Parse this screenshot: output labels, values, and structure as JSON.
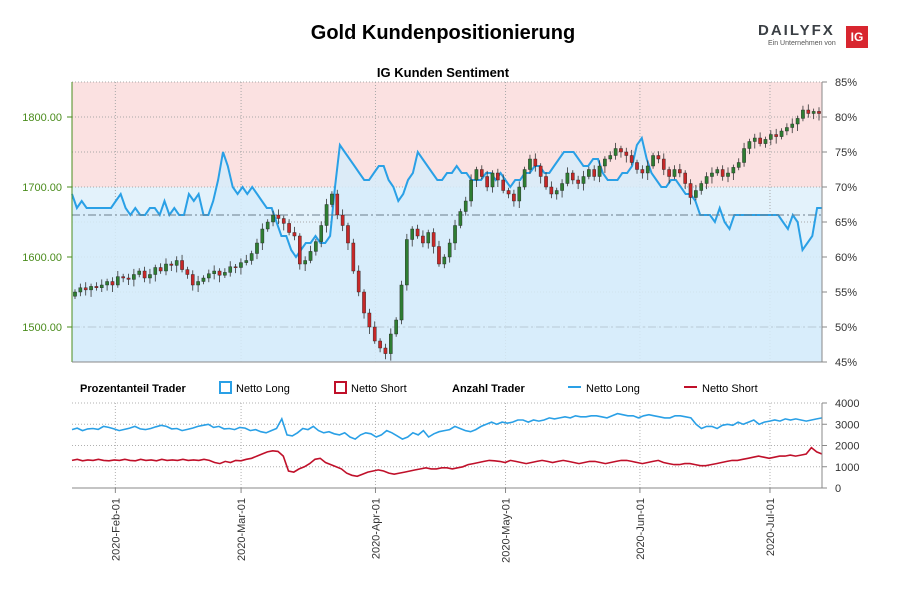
{
  "header": {
    "title": "Gold Kundenpositionierung",
    "logo_brand": "DAILYFX",
    "logo_tagline": "Ein Unternehmen von",
    "logo_ig": "IG"
  },
  "colors": {
    "bull": "#2e7d32",
    "bear": "#c62828",
    "long_line": "#2aa0e6",
    "short_line": "#c0102a",
    "long_fill": "#e3f2fb",
    "short_fill": "#fbe1e1",
    "price_axis": "#4a8c1c"
  },
  "chart_data": {
    "type": "candlestick+line",
    "title": "IG Kunden Sentiment",
    "dates": {
      "start": "2020-01-22",
      "end": "2020-07-13",
      "ticks": [
        "2020-Feb-01",
        "2020-Mar-01",
        "2020-Apr-01",
        "2020-May-01",
        "2020-Jun-01",
        "2020-Jul-01"
      ]
    },
    "price_axis": {
      "range": [
        1450,
        1850
      ],
      "ticks": [
        "1500.00",
        "1600.00",
        "1700.00",
        "1800.00"
      ]
    },
    "sentiment_axis": {
      "range": [
        45,
        85
      ],
      "ticks": [
        "45%",
        "50%",
        "55%",
        "60%",
        "65%",
        "70%",
        "75%",
        "80%",
        "85%"
      ]
    },
    "count_axis": {
      "range": [
        0,
        4000
      ],
      "ticks": [
        "0",
        "1000",
        "2000",
        "3000",
        "4000"
      ]
    },
    "legend": {
      "pct_title": "Prozentanteil Trader",
      "pct_long": "Netto Long",
      "pct_short": "Netto Short",
      "count_title": "Anzahl Trader",
      "count_long": "Netto Long",
      "count_short": "Netto Short"
    },
    "price_closes": [
      1550,
      1556,
      1553,
      1558,
      1556,
      1560,
      1565,
      1560,
      1572,
      1570,
      1568,
      1575,
      1580,
      1570,
      1575,
      1585,
      1580,
      1590,
      1588,
      1595,
      1582,
      1575,
      1560,
      1565,
      1570,
      1576,
      1580,
      1574,
      1578,
      1586,
      1585,
      1592,
      1595,
      1605,
      1620,
      1640,
      1650,
      1660,
      1655,
      1648,
      1635,
      1630,
      1590,
      1595,
      1608,
      1622,
      1645,
      1675,
      1690,
      1660,
      1645,
      1620,
      1580,
      1550,
      1520,
      1500,
      1480,
      1470,
      1462,
      1490,
      1510,
      1560,
      1625,
      1640,
      1630,
      1620,
      1635,
      1615,
      1590,
      1600,
      1620,
      1645,
      1665,
      1680,
      1710,
      1725,
      1715,
      1700,
      1720,
      1710,
      1695,
      1690,
      1680,
      1700,
      1725,
      1740,
      1730,
      1715,
      1700,
      1690,
      1695,
      1705,
      1720,
      1710,
      1705,
      1715,
      1725,
      1715,
      1730,
      1740,
      1745,
      1755,
      1750,
      1745,
      1735,
      1725,
      1720,
      1730,
      1745,
      1740,
      1725,
      1715,
      1725,
      1720,
      1705,
      1685,
      1695,
      1705,
      1715,
      1720,
      1725,
      1715,
      1720,
      1728,
      1735,
      1755,
      1765,
      1770,
      1762,
      1768,
      1775,
      1772,
      1780,
      1785,
      1790,
      1798,
      1810,
      1805,
      1808,
      1805
    ],
    "sentiment_long_pct": [
      69,
      67,
      68,
      67,
      67,
      67,
      67,
      67,
      67,
      68,
      69,
      67,
      66,
      67,
      66,
      66,
      67,
      67,
      66,
      68,
      66,
      67,
      66,
      66,
      69,
      68,
      69,
      66,
      66,
      68,
      71,
      75,
      73,
      70,
      69,
      70,
      69,
      70,
      69,
      68,
      67,
      67,
      65,
      63,
      63,
      61,
      60,
      61,
      62,
      62,
      63,
      62,
      62,
      63,
      70,
      76,
      75,
      74,
      73,
      72,
      71,
      71,
      72,
      73,
      73,
      71,
      70,
      68,
      69,
      71,
      72,
      75,
      74,
      73,
      72,
      71,
      71,
      72,
      72,
      73,
      72,
      72,
      71,
      71,
      71,
      72,
      72,
      71,
      72,
      71,
      70,
      71,
      71,
      72,
      72,
      73,
      73,
      72,
      72,
      73,
      74,
      75,
      75,
      75,
      74,
      73,
      73,
      74,
      74,
      72,
      71,
      71,
      71,
      72,
      72,
      73,
      76,
      77,
      74,
      72,
      71,
      70,
      70,
      71,
      71,
      70,
      69,
      69,
      68,
      66,
      66,
      66,
      65,
      67,
      65,
      64,
      66,
      66,
      66,
      66,
      66,
      66,
      66,
      66,
      66,
      66,
      65,
      64,
      66,
      65,
      61,
      62,
      63,
      67,
      67
    ],
    "count_long": [
      2750,
      2820,
      2700,
      2780,
      2800,
      2760,
      2900,
      2850,
      2780,
      2700,
      2760,
      2820,
      2900,
      2780,
      2750,
      2800,
      2880,
      2950,
      2900,
      2780,
      2800,
      2700,
      2760,
      2820,
      2900,
      2950,
      3000,
      2850,
      2900,
      2780,
      2800,
      2750,
      2850,
      2820,
      2700,
      2750,
      2650,
      2600,
      2700,
      2800,
      3250,
      2500,
      2450,
      2600,
      2800,
      2750,
      2900,
      2700,
      2600,
      2650,
      2550,
      2500,
      2600,
      2400,
      2300,
      2500,
      2600,
      2550,
      2400,
      2500,
      2700,
      2600,
      2450,
      2300,
      2400,
      2600,
      2500,
      2700,
      2400,
      2550,
      2650,
      2700,
      2750,
      2900,
      2800,
      2700,
      2650,
      2750,
      2900,
      3000,
      3100,
      3000,
      3100,
      3050,
      3100,
      3200,
      3200,
      3100,
      3200,
      3150,
      3200,
      3300,
      3250,
      3300,
      3350,
      3300,
      3400,
      3350,
      3350,
      3400,
      3400,
      3350,
      3300,
      3400,
      3500,
      3450,
      3400,
      3400,
      3300,
      3400,
      3450,
      3400,
      3350,
      3300,
      3300,
      3400,
      3400,
      3350,
      3300,
      3000,
      2800,
      2900,
      2900,
      2800,
      2950,
      3000,
      2950,
      3100,
      3000,
      3100,
      3200,
      3000,
      3100,
      3150,
      3200,
      3150,
      3250,
      3200,
      3250,
      3200,
      3150,
      3200,
      3250,
      3300
    ],
    "count_short": [
      1300,
      1350,
      1280,
      1320,
      1300,
      1350,
      1300,
      1280,
      1320,
      1300,
      1350,
      1300,
      1280,
      1350,
      1300,
      1320,
      1280,
      1350,
      1300,
      1320,
      1300,
      1350,
      1300,
      1320,
      1300,
      1350,
      1300,
      1200,
      1150,
      1250,
      1200,
      1300,
      1280,
      1350,
      1400,
      1500,
      1600,
      1700,
      1750,
      1720,
      1500,
      800,
      750,
      900,
      1000,
      1150,
      1350,
      1400,
      1200,
      1100,
      1000,
      900,
      700,
      600,
      550,
      650,
      750,
      800,
      850,
      800,
      700,
      650,
      700,
      750,
      800,
      850,
      900,
      950,
      900,
      900,
      950,
      950,
      900,
      950,
      1000,
      1100,
      1150,
      1200,
      1250,
      1300,
      1280,
      1250,
      1200,
      1300,
      1250,
      1200,
      1150,
      1200,
      1250,
      1300,
      1250,
      1200,
      1250,
      1300,
      1250,
      1200,
      1150,
      1200,
      1250,
      1250,
      1200,
      1150,
      1200,
      1250,
      1300,
      1300,
      1250,
      1200,
      1150,
      1200,
      1250,
      1300,
      1200,
      1150,
      1100,
      1100,
      1150,
      1150,
      1100,
      1050,
      1050,
      1100,
      1150,
      1200,
      1250,
      1300,
      1300,
      1350,
      1400,
      1450,
      1500,
      1450,
      1400,
      1450,
      1500,
      1500,
      1550,
      1500,
      1550,
      1600,
      1900,
      1700,
      1600
    ]
  }
}
